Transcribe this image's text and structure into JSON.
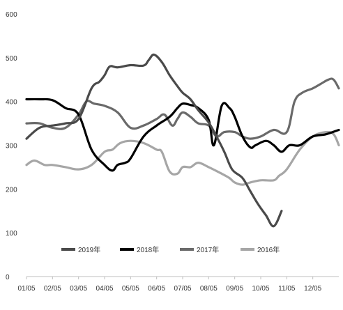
{
  "chart_data": {
    "type": "line",
    "title": "",
    "xlabel": "",
    "ylabel": "",
    "ylim": [
      0,
      600
    ],
    "yticks": [
      0,
      100,
      200,
      300,
      400,
      500,
      600
    ],
    "xlim": [
      0,
      12
    ],
    "xtick_labels": [
      "01/05",
      "02/05",
      "03/05",
      "04/05",
      "05/05",
      "06/05",
      "07/05",
      "08/05",
      "09/05",
      "10/05",
      "11/05",
      "12/05"
    ],
    "grid": false,
    "legend_position": "bottom",
    "series": [
      {
        "name": "2019年",
        "color": "#4a4a4a",
        "x": [
          0,
          0.5,
          1.0,
          1.5,
          2.0,
          2.5,
          2.8,
          3.0,
          3.2,
          3.5,
          4.0,
          4.5,
          4.7,
          4.9,
          5.2,
          5.5,
          5.8,
          6.0,
          6.3,
          6.6,
          7.0,
          7.3,
          7.6,
          7.9,
          8.3,
          8.6,
          8.9,
          9.2,
          9.5,
          9.8
        ],
        "values": [
          315,
          340,
          345,
          350,
          360,
          430,
          445,
          460,
          480,
          478,
          483,
          482,
          495,
          507,
          490,
          460,
          435,
          420,
          405,
          380,
          352,
          320,
          285,
          245,
          225,
          195,
          165,
          140,
          115,
          150
        ]
      },
      {
        "name": "2018年",
        "color": "#000000",
        "x": [
          0,
          0.5,
          1.0,
          1.5,
          2.0,
          2.5,
          3.0,
          3.3,
          3.5,
          3.8,
          4.0,
          4.5,
          5.0,
          5.5,
          5.8,
          6.0,
          6.3,
          6.6,
          7.0,
          7.2,
          7.5,
          7.8,
          8.0,
          8.3,
          8.6,
          8.8,
          9.2,
          9.5,
          9.8,
          10.1,
          10.5,
          11.0,
          11.5,
          12.0
        ],
        "values": [
          405,
          405,
          403,
          385,
          370,
          290,
          255,
          242,
          255,
          260,
          270,
          320,
          345,
          365,
          385,
          395,
          392,
          385,
          358,
          300,
          390,
          385,
          365,
          320,
          295,
          300,
          310,
          300,
          285,
          300,
          300,
          320,
          325,
          335
        ]
      },
      {
        "name": "2017年",
        "color": "#6a6a6a",
        "x": [
          0,
          0.5,
          1.0,
          1.5,
          2.0,
          2.3,
          2.6,
          3.0,
          3.5,
          4.0,
          4.5,
          5.0,
          5.3,
          5.6,
          5.8,
          6.0,
          6.3,
          6.6,
          7.0,
          7.3,
          7.6,
          8.0,
          8.3,
          8.6,
          9.0,
          9.5,
          10.0,
          10.3,
          10.6,
          11.0,
          11.3,
          11.6,
          11.8,
          12.0
        ],
        "values": [
          350,
          350,
          340,
          340,
          370,
          400,
          395,
          390,
          375,
          340,
          345,
          360,
          370,
          345,
          360,
          375,
          365,
          350,
          345,
          320,
          330,
          330,
          320,
          315,
          320,
          335,
          330,
          400,
          420,
          430,
          440,
          450,
          450,
          430
        ]
      },
      {
        "name": "2016年",
        "color": "#a6a6a6",
        "x": [
          0,
          0.3,
          0.7,
          1.0,
          1.5,
          2.0,
          2.5,
          3.0,
          3.3,
          3.6,
          4.0,
          4.5,
          5.0,
          5.2,
          5.5,
          5.8,
          6.0,
          6.3,
          6.6,
          7.0,
          7.5,
          7.8,
          8.0,
          8.3,
          8.6,
          9.0,
          9.5,
          9.7,
          10.0,
          10.5,
          11.0,
          11.5,
          11.8,
          12.0
        ],
        "values": [
          255,
          265,
          255,
          255,
          250,
          245,
          255,
          285,
          290,
          305,
          310,
          305,
          290,
          285,
          240,
          235,
          250,
          250,
          260,
          250,
          235,
          225,
          215,
          210,
          215,
          220,
          220,
          230,
          245,
          290,
          320,
          330,
          325,
          300
        ]
      }
    ]
  }
}
